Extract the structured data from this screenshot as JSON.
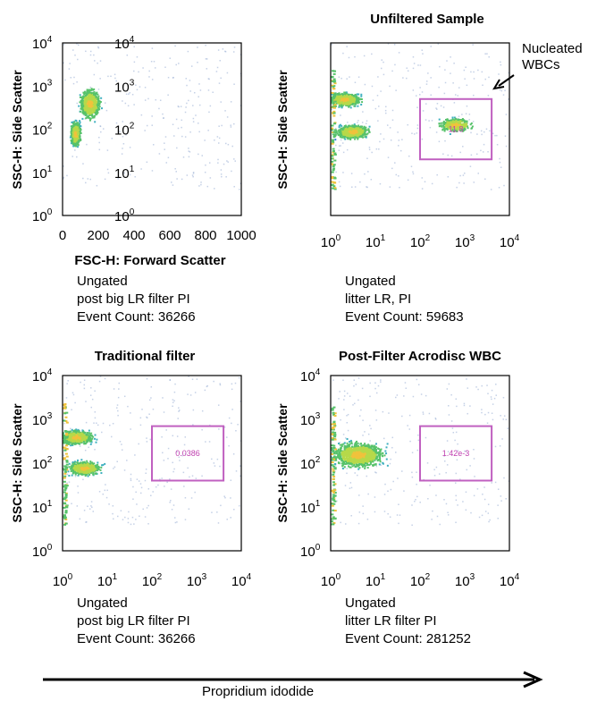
{
  "figure": {
    "axis_label_bottom": "Propridium idodide",
    "annotation": "Nucleated\nWBCs"
  },
  "chart_data": [
    {
      "type": "scatter",
      "title": "",
      "xlabel": "FSC-H: Forward Scatter",
      "ylabel": "SSC-H: Side Scatter",
      "xscale": "linear",
      "yscale": "log",
      "xlim": [
        0,
        1000
      ],
      "ylim": [
        1,
        10000
      ],
      "x_ticks": [
        "0",
        "200",
        "400",
        "600",
        "800",
        "1000"
      ],
      "y_ticks": [
        "10^0",
        "10^1",
        "10^2",
        "10^3",
        "10^4"
      ],
      "overlay_ticks": [
        "10^0",
        "10^1",
        "10^2",
        "10^3",
        "10^4"
      ],
      "caption": [
        "Ungated",
        "post big LR filter PI",
        "Event Count: 36266"
      ],
      "populations": [
        {
          "x": 150,
          "y": 400,
          "spread_x": 80,
          "spread_y": 0.5,
          "density": "high"
        },
        {
          "x": 70,
          "y": 80,
          "spread_x": 40,
          "spread_y": 0.4,
          "density": "high"
        }
      ]
    },
    {
      "type": "scatter",
      "title": "Unfiltered Sample",
      "xlabel": "",
      "ylabel": "SSC-H: Side Scatter",
      "xscale": "log",
      "yscale": "log",
      "xlim": [
        1,
        10000
      ],
      "ylim": [
        1,
        10000
      ],
      "x_ticks": [
        "10^0",
        "10^1",
        "10^2",
        "10^3",
        "10^4"
      ],
      "caption": [
        "Ungated",
        "litter LR, PI",
        "Event Count: 59683"
      ],
      "gate": {
        "x": [
          100,
          4000
        ],
        "y": [
          20,
          500
        ],
        "value": "11.8"
      },
      "populations": [
        {
          "x": 2,
          "y": 500,
          "density": "high"
        },
        {
          "x": 3,
          "y": 90,
          "density": "high"
        },
        {
          "x": 600,
          "y": 130,
          "density": "medium"
        }
      ]
    },
    {
      "type": "scatter",
      "title": "Traditional filter",
      "xlabel": "",
      "ylabel": "SSC-H: Side Scatter",
      "xscale": "log",
      "yscale": "log",
      "xlim": [
        1,
        10000
      ],
      "ylim": [
        1,
        10000
      ],
      "x_ticks": [
        "10^0",
        "10^1",
        "10^2",
        "10^3",
        "10^4"
      ],
      "y_ticks": [
        "10^0",
        "10^1",
        "10^2",
        "10^3",
        "10^4"
      ],
      "caption": [
        "Ungated",
        "post big LR filter PI",
        "Event Count: 36266"
      ],
      "gate": {
        "x": [
          100,
          4000
        ],
        "y": [
          40,
          700
        ],
        "value": "0.0386"
      },
      "populations": [
        {
          "x": 2,
          "y": 400,
          "density": "high"
        },
        {
          "x": 3,
          "y": 80,
          "density": "high"
        }
      ]
    },
    {
      "type": "scatter",
      "title": "Post-Filter Acrodisc WBC",
      "xlabel": "",
      "ylabel": "SSC-H: Side Scatter",
      "xscale": "log",
      "yscale": "log",
      "xlim": [
        1,
        10000
      ],
      "ylim": [
        1,
        10000
      ],
      "x_ticks": [
        "10^0",
        "10^1",
        "10^2",
        "10^3",
        "10^4"
      ],
      "y_ticks": [
        "10^0",
        "10^1",
        "10^2",
        "10^3",
        "10^4"
      ],
      "caption": [
        "Ungated",
        "litter LR filter PI",
        "Event Count: 281252"
      ],
      "gate": {
        "x": [
          100,
          4000
        ],
        "y": [
          40,
          700
        ],
        "value": "1.42e-3"
      },
      "populations": [
        {
          "x": 4,
          "y": 160,
          "density": "very-high"
        }
      ]
    }
  ]
}
